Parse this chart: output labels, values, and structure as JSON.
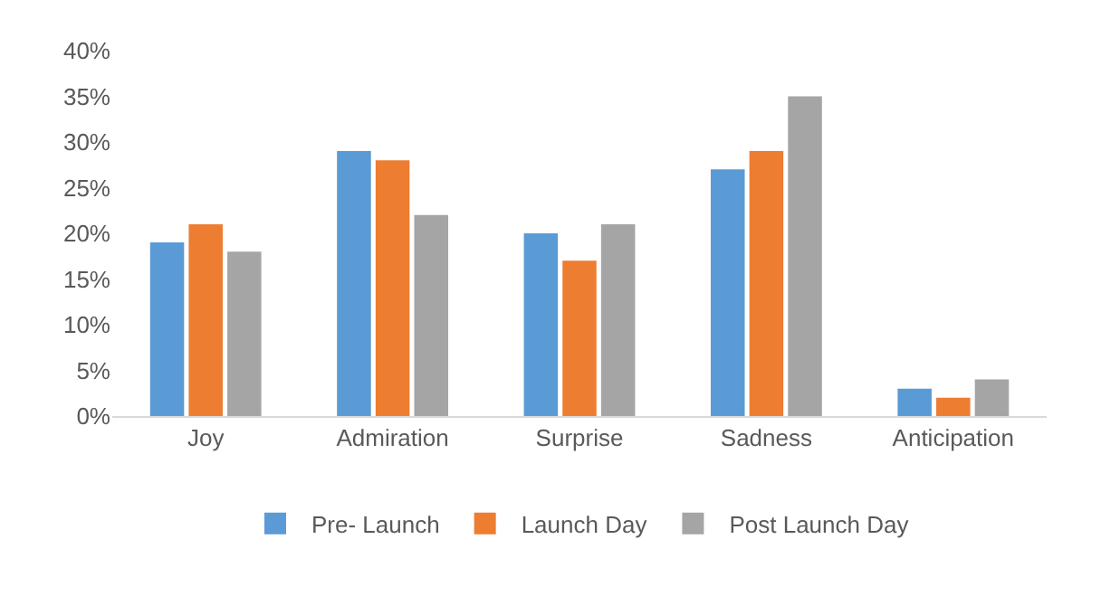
{
  "chart_data": {
    "type": "bar",
    "categories": [
      "Joy",
      "Admiration",
      "Surprise",
      "Sadness",
      "Anticipation"
    ],
    "series": [
      {
        "name": "Pre- Launch",
        "color": "#5b9bd5",
        "values": [
          19,
          29,
          20,
          27,
          3
        ]
      },
      {
        "name": "Launch Day",
        "color": "#ed7d31",
        "values": [
          21,
          28,
          17,
          29,
          2
        ]
      },
      {
        "name": "Post Launch Day",
        "color": "#a5a5a5",
        "values": [
          18,
          22,
          21,
          35,
          4
        ]
      }
    ],
    "ylim": [
      0,
      40
    ],
    "yticks": [
      {
        "value": 0,
        "label": "0%"
      },
      {
        "value": 5,
        "label": "5%"
      },
      {
        "value": 10,
        "label": "10%"
      },
      {
        "value": 15,
        "label": "15%"
      },
      {
        "value": 20,
        "label": "20%"
      },
      {
        "value": 25,
        "label": "25%"
      },
      {
        "value": 30,
        "label": "30%"
      },
      {
        "value": 35,
        "label": "35%"
      },
      {
        "value": 40,
        "label": "40%"
      }
    ],
    "grid": false,
    "legend": "bottom"
  }
}
